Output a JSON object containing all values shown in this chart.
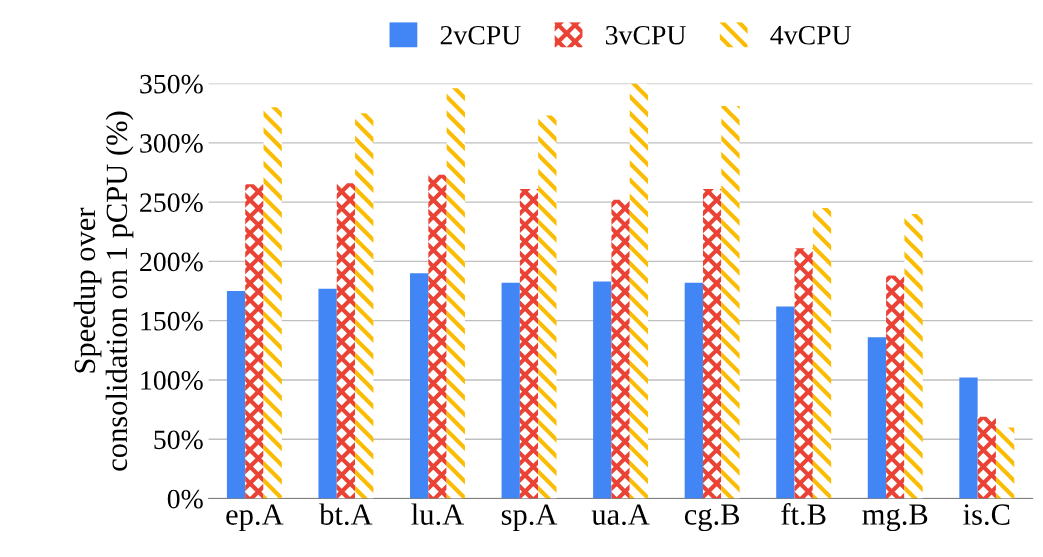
{
  "chart_data": {
    "type": "bar",
    "ylabel": "Speedup over\nconsolidation on 1 pCPU (%)",
    "categories": [
      "ep.A",
      "bt.A",
      "lu.A",
      "sp.A",
      "ua.A",
      "cg.B",
      "ft.B",
      "mg.B",
      "is.C"
    ],
    "series": [
      {
        "name": "2vCPU",
        "color": "#4285f4",
        "values": [
          175,
          177,
          190,
          182,
          183,
          182,
          162,
          136,
          102
        ]
      },
      {
        "name": "3vCPU",
        "color": "#ea4335",
        "values": [
          265,
          266,
          273,
          261,
          252,
          261,
          211,
          188,
          69
        ]
      },
      {
        "name": "4vCPU",
        "color": "#fbbc04",
        "values": [
          330,
          325,
          346,
          323,
          350,
          331,
          245,
          240,
          60
        ]
      }
    ],
    "ylim": [
      0,
      350
    ],
    "yticks": [
      {
        "value": 0,
        "label": "0%"
      },
      {
        "value": 50,
        "label": "50%"
      },
      {
        "value": 100,
        "label": "100%"
      },
      {
        "value": 150,
        "label": "150%"
      },
      {
        "value": 200,
        "label": "200%"
      },
      {
        "value": 250,
        "label": "250%"
      },
      {
        "value": 300,
        "label": "300%"
      },
      {
        "value": 350,
        "label": "350%"
      }
    ],
    "grid": "y",
    "legend": "top"
  }
}
